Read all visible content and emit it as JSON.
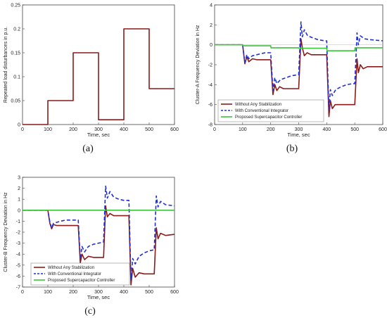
{
  "chart_data": [
    {
      "panel_label": "(a)",
      "type": "line",
      "title": "",
      "xlabel": "Time, sec",
      "ylabel": "Repeated load disturbances in p.u.",
      "xlim": [
        0,
        600
      ],
      "ylim": [
        0,
        0.25
      ],
      "xticks": [
        "0",
        "100",
        "200",
        "300",
        "400",
        "500",
        "600"
      ],
      "yticks": [
        "0",
        "0.05",
        "0.1",
        "0.15",
        "0.2",
        "0.25"
      ],
      "ytick_values": [
        0,
        0.05,
        0.1,
        0.15,
        0.2,
        0.25
      ],
      "grid": false,
      "legend": "none",
      "series": [
        {
          "color": "#8b1a1a",
          "x": [
            0,
            100,
            100,
            200,
            200,
            300,
            300,
            400,
            400,
            500,
            500,
            600
          ],
          "y": [
            0,
            0,
            0.05,
            0.05,
            0.15,
            0.15,
            0.01,
            0.01,
            0.2,
            0.2,
            0.075,
            0.075
          ]
        }
      ]
    },
    {
      "panel_label": "(b)",
      "type": "line",
      "title": "",
      "xlabel": "Time, sec",
      "ylabel": "Cluster-A Frequency Deviation in Hz",
      "xlim": [
        0,
        600
      ],
      "ylim": [
        -8,
        4
      ],
      "xticks": [
        "0",
        "100",
        "200",
        "300",
        "400",
        "500",
        "600"
      ],
      "yticks": [
        "-8",
        "-6",
        "-4",
        "-2",
        "0",
        "2",
        "4"
      ],
      "ytick_values": [
        -8,
        -6,
        -4,
        -2,
        0,
        2,
        4
      ],
      "grid": false,
      "legend": "bottom-left",
      "series": [
        {
          "name": "Without Any Stabilization",
          "color": "#8b1a1a",
          "dash": "",
          "x": [
            0,
            100,
            108,
            115,
            122,
            135,
            150,
            165,
            180,
            200,
            208,
            215,
            222,
            232,
            245,
            265,
            285,
            300,
            308,
            313,
            320,
            330,
            345,
            365,
            385,
            400,
            408,
            413,
            420,
            430,
            445,
            465,
            485,
            500,
            508,
            513,
            520,
            530,
            545,
            570,
            600
          ],
          "y": [
            0,
            0,
            -1.9,
            -1.2,
            -1.7,
            -1.4,
            -1.5,
            -1.5,
            -1.5,
            -1.5,
            -5.0,
            -4.0,
            -4.6,
            -4.2,
            -4.4,
            -4.4,
            -4.4,
            -4.4,
            0.6,
            -0.3,
            -1.1,
            -0.8,
            -1.0,
            -1.0,
            -1.0,
            -1.0,
            -7.2,
            -5.6,
            -6.4,
            -6.0,
            -6.0,
            -6.0,
            -6.0,
            -6.0,
            -1.4,
            -2.8,
            -2.0,
            -2.4,
            -2.2,
            -2.2,
            -2.2
          ]
        },
        {
          "name": "With Conventional Integrator",
          "color": "#1f2fd6",
          "dash": "5,3",
          "x": [
            0,
            100,
            108,
            115,
            122,
            135,
            150,
            165,
            180,
            200,
            208,
            215,
            222,
            235,
            255,
            275,
            300,
            308,
            313,
            320,
            332,
            350,
            370,
            395,
            400,
            408,
            413,
            420,
            432,
            452,
            472,
            492,
            500,
            508,
            513,
            520,
            535,
            560,
            600
          ],
          "y": [
            0,
            0,
            -1.8,
            -1.0,
            -1.4,
            -1.1,
            -1.0,
            -0.9,
            -0.8,
            -0.8,
            -4.6,
            -3.3,
            -3.9,
            -3.5,
            -3.3,
            -3.1,
            -3.0,
            2.3,
            0.8,
            1.5,
            0.9,
            0.7,
            0.5,
            0.4,
            0.4,
            -6.6,
            -4.5,
            -5.1,
            -4.5,
            -4.2,
            -4.0,
            -3.9,
            -3.9,
            1.2,
            0.0,
            0.9,
            0.6,
            0.5,
            0.4
          ]
        },
        {
          "name": "Proposed Supercapacitor Controller",
          "color": "#3cc43c",
          "dash": "",
          "x": [
            0,
            100,
            101,
            200,
            201,
            300,
            301,
            400,
            401,
            500,
            501,
            600
          ],
          "y": [
            0,
            0,
            -0.1,
            -0.1,
            -0.3,
            -0.3,
            -0.35,
            -0.35,
            -0.6,
            -0.6,
            -0.3,
            -0.3
          ]
        }
      ]
    },
    {
      "panel_label": "(c)",
      "type": "line",
      "title": "",
      "xlabel": "Time, sec",
      "ylabel": "Cluster-B Frequency Deviation in Hz",
      "xlim": [
        0,
        600
      ],
      "ylim": [
        -7,
        3
      ],
      "xticks": [
        "0",
        "100",
        "200",
        "300",
        "400",
        "500",
        "600"
      ],
      "yticks": [
        "-7",
        "-6",
        "-5",
        "-4",
        "-3",
        "-2",
        "-1",
        "0",
        "1",
        "2",
        "3"
      ],
      "ytick_values": [
        -7,
        -6,
        -5,
        -4,
        -3,
        -2,
        -1,
        0,
        1,
        2,
        3
      ],
      "grid": false,
      "legend": "bottom-left",
      "series": [
        {
          "name": "Without Any Stabilization",
          "color": "#8b1a1a",
          "dash": "",
          "x": [
            0,
            100,
            108,
            115,
            122,
            135,
            150,
            170,
            200,
            220,
            228,
            235,
            245,
            260,
            280,
            300,
            320,
            328,
            335,
            345,
            360,
            380,
            400,
            420,
            428,
            435,
            445,
            460,
            480,
            500,
            520,
            528,
            535,
            545,
            565,
            600
          ],
          "y": [
            0,
            0,
            -1.2,
            -1.7,
            -1.3,
            -1.4,
            -1.4,
            -1.4,
            -1.4,
            -1.4,
            -4.8,
            -4.0,
            -4.5,
            -4.2,
            -4.3,
            -4.3,
            -4.3,
            0.4,
            -0.6,
            -0.3,
            -0.5,
            -0.5,
            -0.5,
            -0.5,
            -6.8,
            -5.3,
            -6.1,
            -5.7,
            -5.8,
            -5.8,
            -5.8,
            -1.6,
            -2.6,
            -2.1,
            -2.3,
            -2.2
          ]
        },
        {
          "name": "With Conventional Integrator",
          "color": "#1f2fd6",
          "dash": "5,3",
          "x": [
            0,
            100,
            108,
            115,
            122,
            135,
            150,
            170,
            200,
            220,
            228,
            235,
            245,
            260,
            280,
            300,
            320,
            328,
            335,
            345,
            360,
            380,
            400,
            420,
            428,
            435,
            445,
            460,
            480,
            500,
            520,
            528,
            535,
            545,
            565,
            600
          ],
          "y": [
            0,
            0,
            -1.1,
            -1.6,
            -1.2,
            -1.1,
            -1.0,
            -0.9,
            -0.9,
            -0.9,
            -4.4,
            -3.3,
            -3.8,
            -3.3,
            -3.1,
            -3.0,
            -2.9,
            2.2,
            1.1,
            1.7,
            1.2,
            1.0,
            0.9,
            0.9,
            -6.3,
            -4.4,
            -4.9,
            -4.2,
            -3.9,
            -3.7,
            -3.6,
            1.3,
            0.3,
            0.8,
            0.5,
            0.4
          ]
        },
        {
          "name": "Proposed Supercapacitor Controller",
          "color": "#3cc43c",
          "dash": "",
          "x": [
            0,
            600
          ],
          "y": [
            0,
            0
          ]
        }
      ]
    }
  ]
}
